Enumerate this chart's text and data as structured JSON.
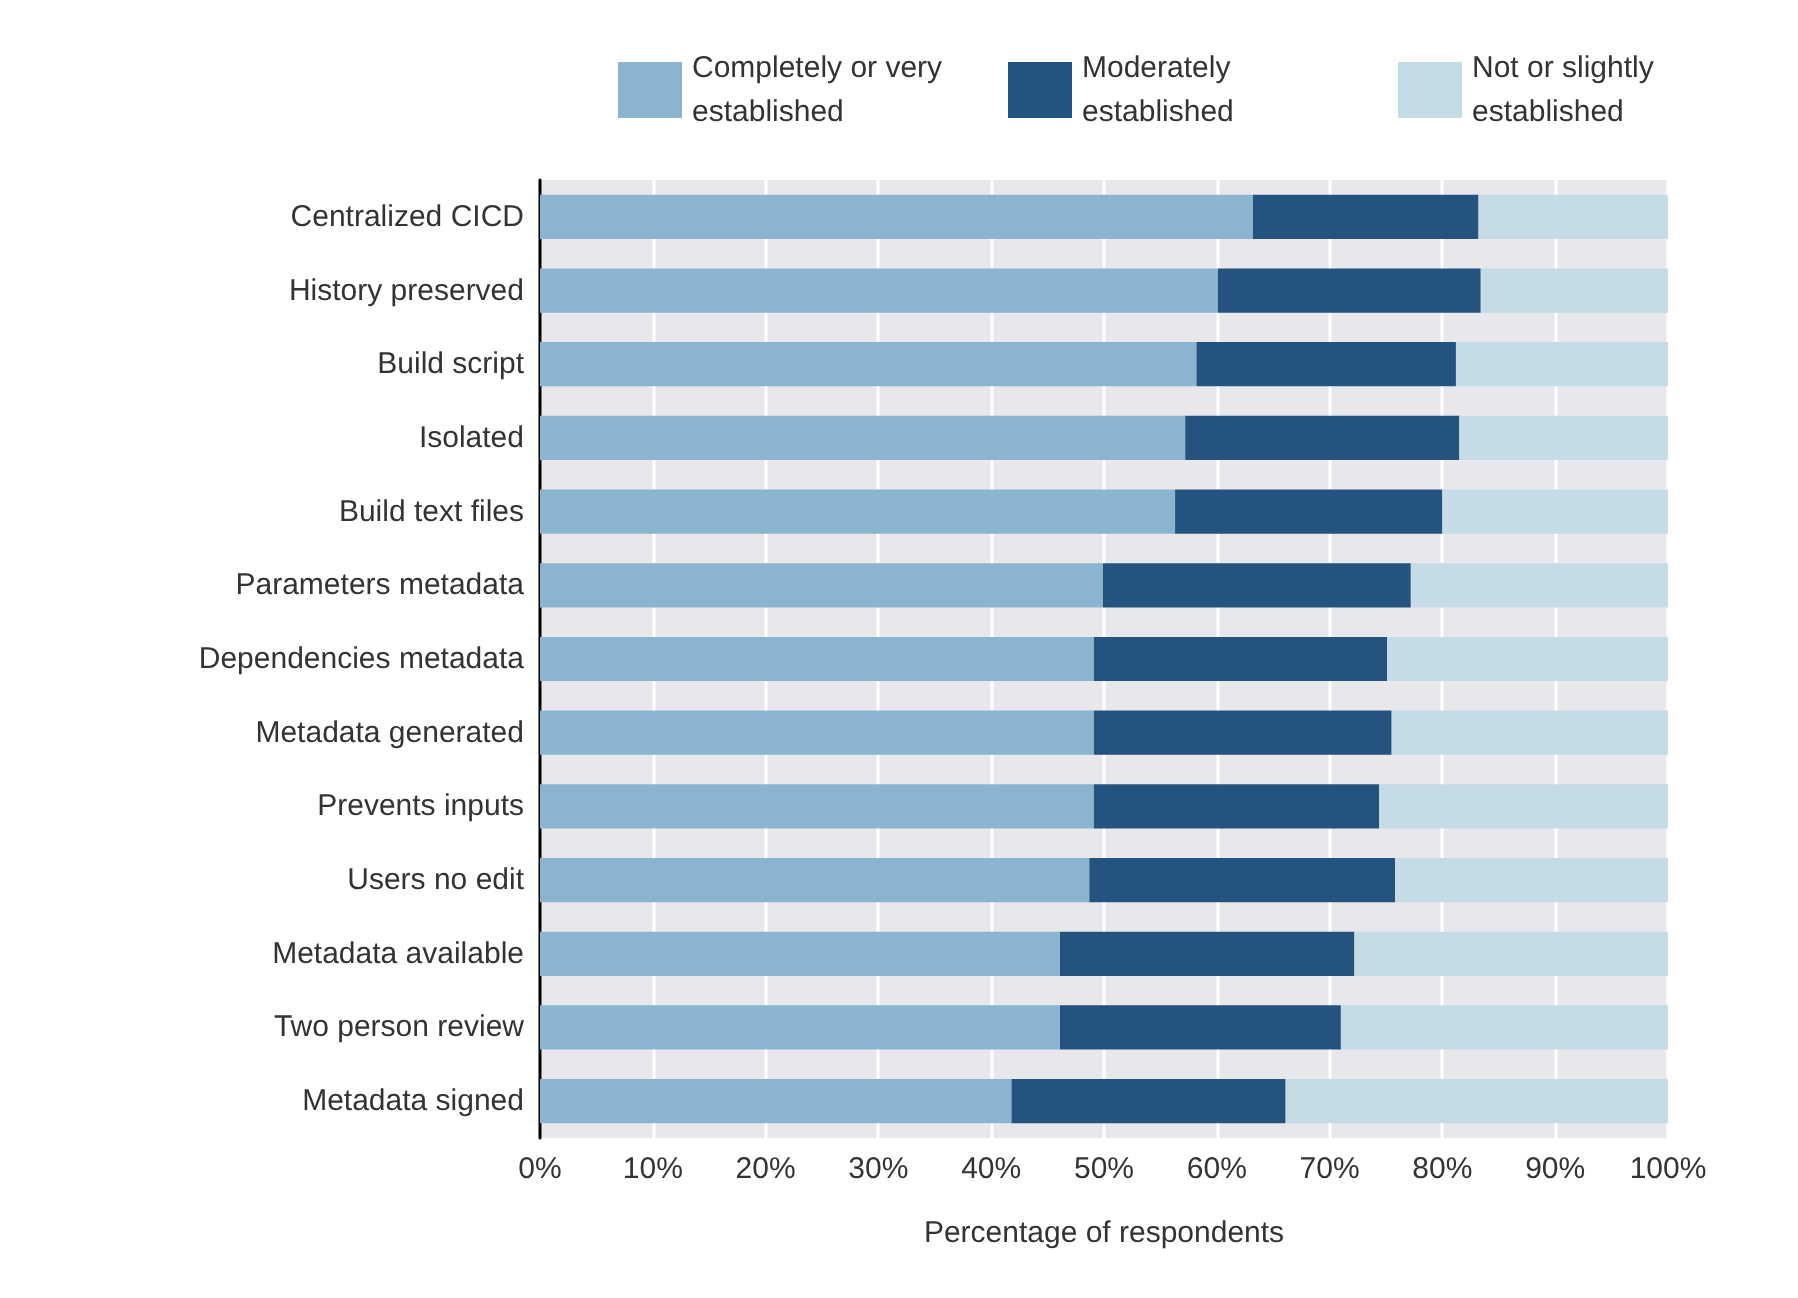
{
  "chart_data": {
    "type": "bar",
    "orientation": "horizontal",
    "stacked": true,
    "xlabel": "Percentage of respondents",
    "categories": [
      "Centralized CICD",
      "History preserved",
      "Build script",
      "Isolated",
      "Build text files",
      "Parameters metadata",
      "Dependencies metadata",
      "Metadata generated",
      "Prevents inputs",
      "Users no edit",
      "Metadata available",
      "Two person review",
      "Metadata signed"
    ],
    "series": [
      {
        "name": "Completely or very established",
        "color": "#8ab4cf",
        "values": [
          63.2,
          60.1,
          58.2,
          57.2,
          56.3,
          49.9,
          49.1,
          49.1,
          49.1,
          48.7,
          46.1,
          46.1,
          41.8
        ]
      },
      {
        "name": "Moderately established",
        "color": "#24537f",
        "values": [
          20,
          23.3,
          23,
          24.3,
          23.7,
          27.3,
          26,
          26.4,
          25.3,
          27.1,
          26.1,
          24.9,
          24.3
        ]
      },
      {
        "name": "Not or slightly established",
        "color": "#c5dbe6",
        "values": [
          16.8,
          16.6,
          18.8,
          18.5,
          20,
          22.8,
          24.9,
          24.5,
          25.6,
          24.2,
          27.8,
          29,
          33.9
        ]
      }
    ],
    "xlim": [
      0,
      100
    ],
    "xticks": [
      {
        "value": 0,
        "label": "0%"
      },
      {
        "value": 10,
        "label": "10%"
      },
      {
        "value": 20,
        "label": "20%"
      },
      {
        "value": 30,
        "label": "30%"
      },
      {
        "value": 40,
        "label": "40%"
      },
      {
        "value": 50,
        "label": "50%"
      },
      {
        "value": 60,
        "label": "60%"
      },
      {
        "value": 70,
        "label": "70%"
      },
      {
        "value": 80,
        "label": "80%"
      },
      {
        "value": 90,
        "label": "90%"
      },
      {
        "value": 100,
        "label": "100%"
      }
    ],
    "grid": "x",
    "legend": "top right"
  }
}
